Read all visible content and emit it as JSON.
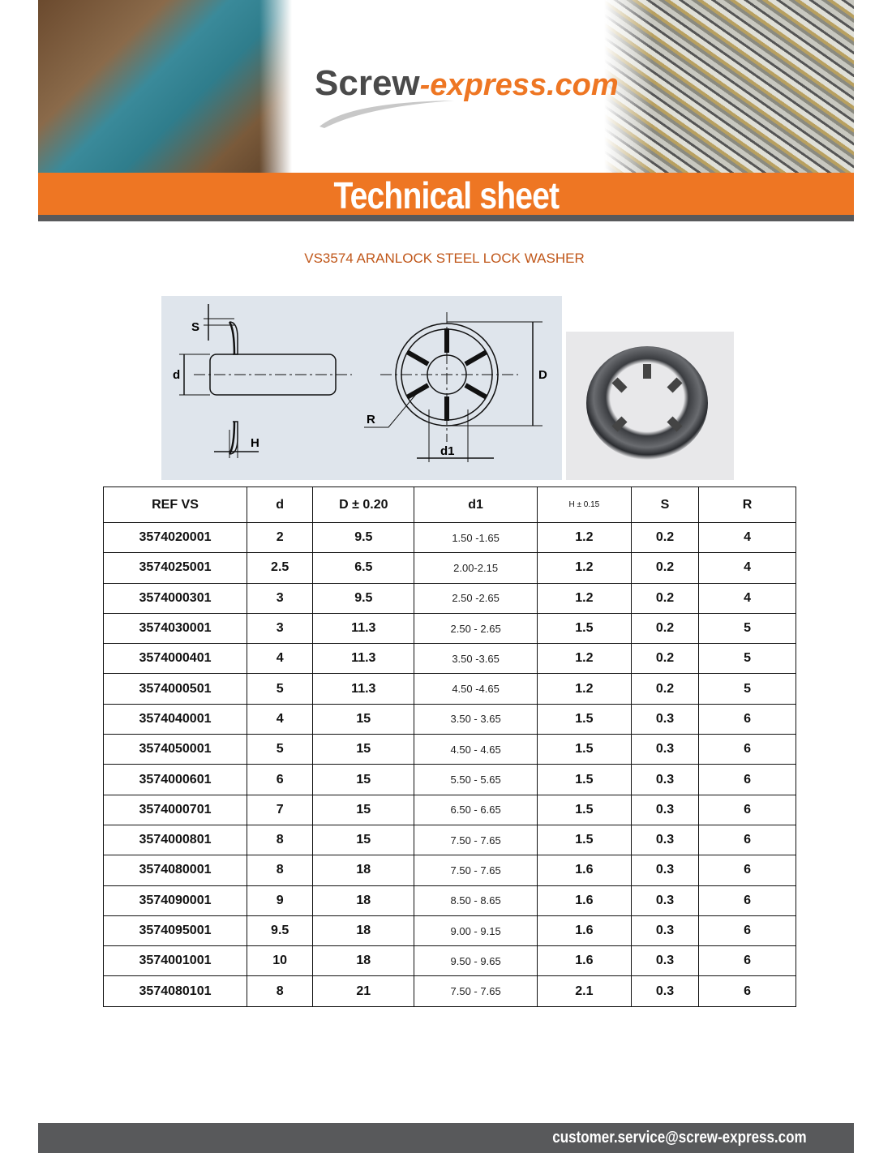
{
  "header": {
    "logo_part1": "Screw",
    "logo_part2": "-express.com",
    "banner_title": "Technical sheet",
    "brand_color": "#ee7623"
  },
  "product": {
    "title": "VS3574 ARANLOCK STEEL LOCK WASHER"
  },
  "diagram": {
    "labels": {
      "s": "S",
      "d": "d",
      "h": "H",
      "r": "R",
      "d1": "d1",
      "D": "D"
    }
  },
  "table": {
    "headers": [
      "REF VS",
      "d",
      "D ± 0.20",
      "d1",
      "H ± 0.15",
      "S",
      "R"
    ],
    "rows": [
      [
        "3574020001",
        "2",
        "9.5",
        "1.50 -1.65",
        "1.2",
        "0.2",
        "4"
      ],
      [
        "3574025001",
        "2.5",
        "6.5",
        "2.00-2.15",
        "1.2",
        "0.2",
        "4"
      ],
      [
        "3574000301",
        "3",
        "9.5",
        "2.50 -2.65",
        "1.2",
        "0.2",
        "4"
      ],
      [
        "3574030001",
        "3",
        "11.3",
        "2.50 - 2.65",
        "1.5",
        "0.2",
        "5"
      ],
      [
        "3574000401",
        "4",
        "11.3",
        "3.50 -3.65",
        "1.2",
        "0.2",
        "5"
      ],
      [
        "3574000501",
        "5",
        "11.3",
        "4.50 -4.65",
        "1.2",
        "0.2",
        "5"
      ],
      [
        "3574040001",
        "4",
        "15",
        "3.50 - 3.65",
        "1.5",
        "0.3",
        "6"
      ],
      [
        "3574050001",
        "5",
        "15",
        "4.50 - 4.65",
        "1.5",
        "0.3",
        "6"
      ],
      [
        "3574000601",
        "6",
        "15",
        "5.50 - 5.65",
        "1.5",
        "0.3",
        "6"
      ],
      [
        "3574000701",
        "7",
        "15",
        "6.50 - 6.65",
        "1.5",
        "0.3",
        "6"
      ],
      [
        "3574000801",
        "8",
        "15",
        "7.50 - 7.65",
        "1.5",
        "0.3",
        "6"
      ],
      [
        "3574080001",
        "8",
        "18",
        "7.50 - 7.65",
        "1.6",
        "0.3",
        "6"
      ],
      [
        "3574090001",
        "9",
        "18",
        "8.50 - 8.65",
        "1.6",
        "0.3",
        "6"
      ],
      [
        "3574095001",
        "9.5",
        "18",
        "9.00 - 9.15",
        "1.6",
        "0.3",
        "6"
      ],
      [
        "3574001001",
        "10",
        "18",
        "9.50 - 9.65",
        "1.6",
        "0.3",
        "6"
      ],
      [
        "3574080101",
        "8",
        "21",
        "7.50 - 7.65",
        "2.1",
        "0.3",
        "6"
      ]
    ]
  },
  "footer": {
    "email": "customer.service@screw-express.com"
  }
}
